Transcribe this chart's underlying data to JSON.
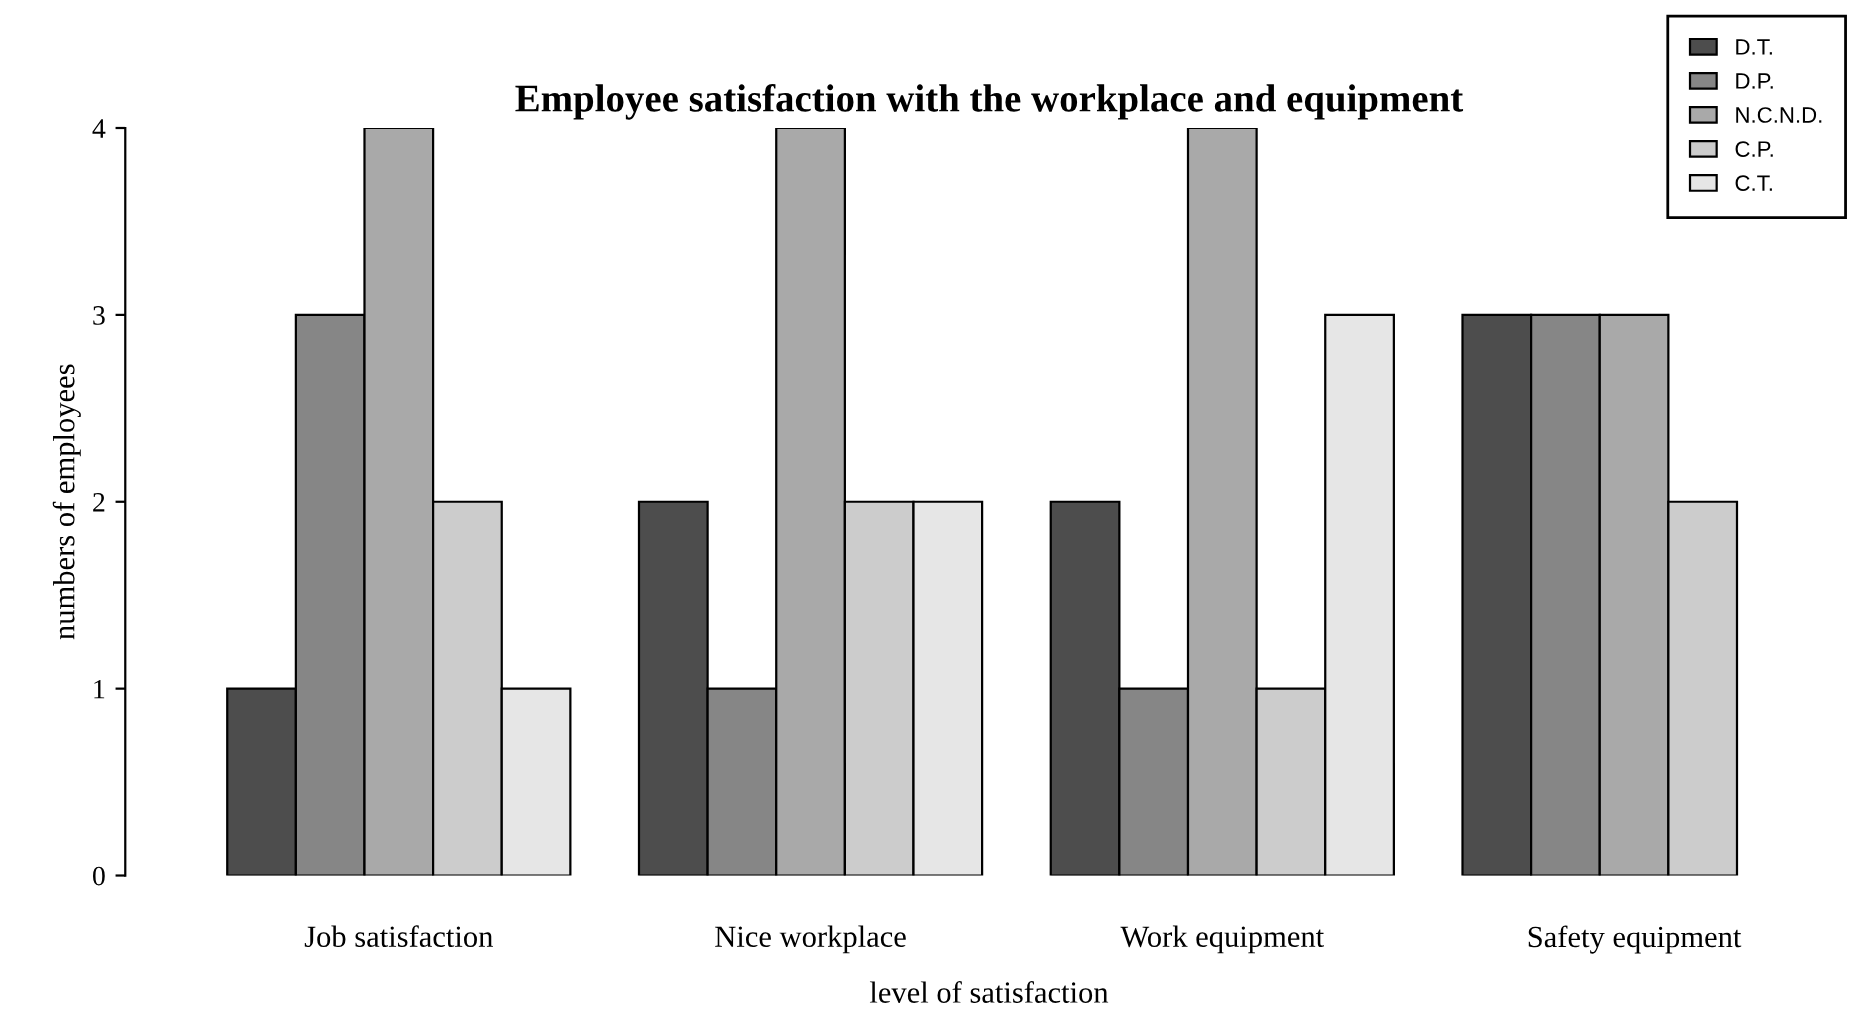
{
  "chart_data": {
    "type": "bar",
    "title": "Employee satisfaction with the workplace and equipment",
    "xlabel": "level of satisfaction",
    "ylabel": "numbers of employees",
    "categories": [
      "Job satisfaction",
      "Nice workplace",
      "Work equipment",
      "Safety equipment"
    ],
    "series": [
      {
        "name": "D.T.",
        "color": "#4d4d4d",
        "values": [
          1,
          2,
          2,
          3
        ]
      },
      {
        "name": "D.P.",
        "color": "#868686",
        "values": [
          3,
          1,
          1,
          3
        ]
      },
      {
        "name": "N.C.N.D.",
        "color": "#a9a9a9",
        "values": [
          4,
          4,
          4,
          3
        ]
      },
      {
        "name": "C.P.",
        "color": "#cccccc",
        "values": [
          2,
          2,
          1,
          2
        ]
      },
      {
        "name": "C.T.",
        "color": "#e6e6e6",
        "values": [
          1,
          2,
          3,
          null
        ]
      }
    ],
    "ylim": [
      0,
      4
    ],
    "yticks": [
      0,
      1,
      2,
      3,
      4
    ],
    "grid": false,
    "legend": "top right"
  }
}
